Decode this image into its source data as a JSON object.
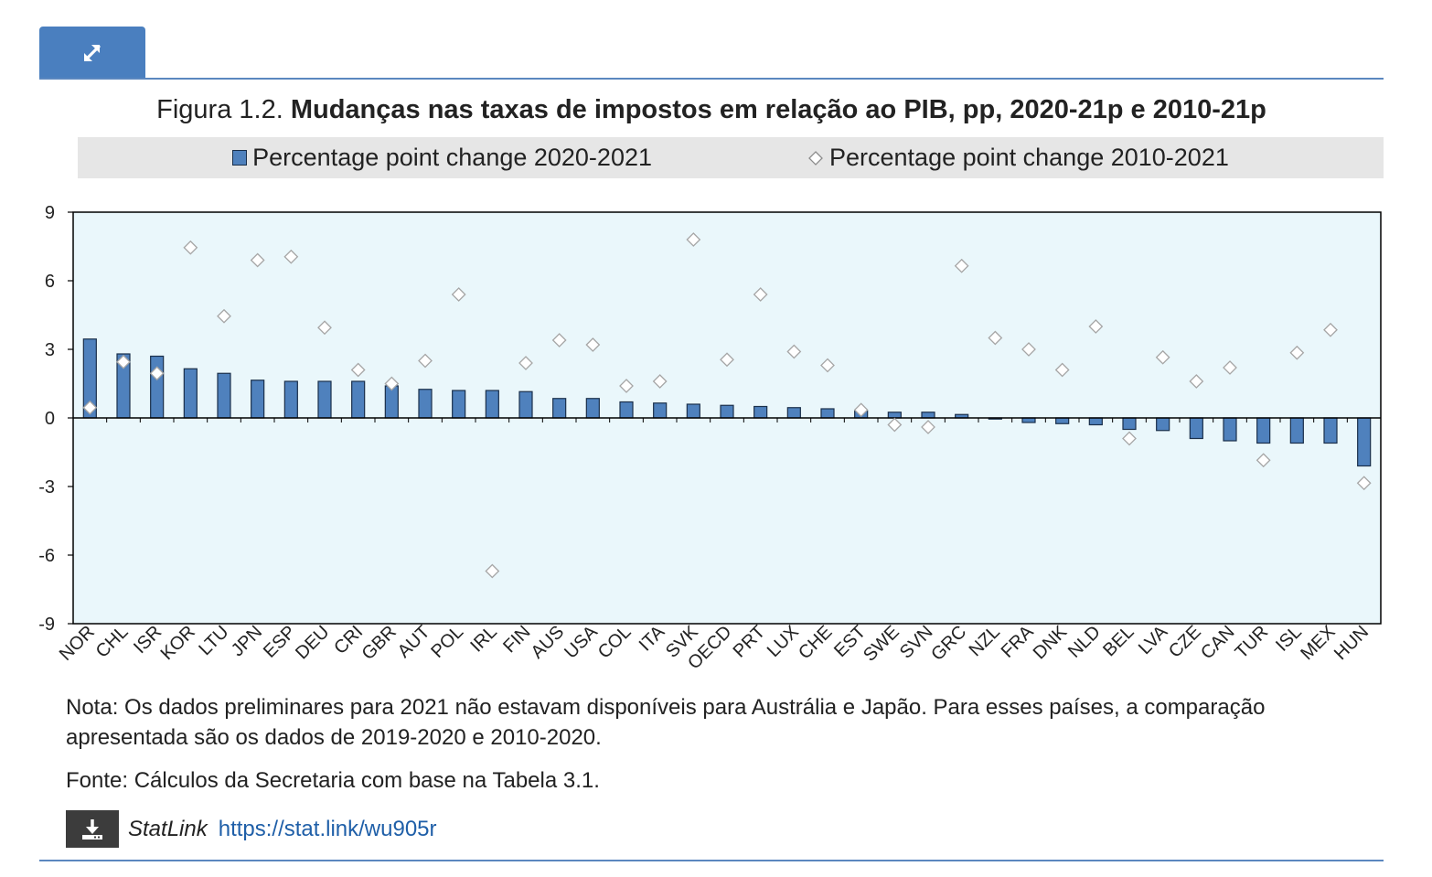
{
  "figure": {
    "label": "Figura 1.2.",
    "title": "Mudanças nas taxas de impostos em relação ao PIB, pp, 2020-21p e 2010-21p"
  },
  "legend": {
    "bar_label": "Percentage point change 2020-2021",
    "diamond_label": "Percentage point change 2010-2021"
  },
  "colors": {
    "bar_fill": "#4f81bd",
    "bar_stroke": "#1a2f4a",
    "plot_background": "#eaf7fb",
    "diamond_stroke": "#a6a6a6",
    "accent": "#4a7fbf"
  },
  "icons": {
    "expand": "expand-icon",
    "download": "download-icon"
  },
  "chart_data": {
    "type": "bar",
    "categories": [
      "NOR",
      "CHL",
      "ISR",
      "KOR",
      "LTU",
      "JPN",
      "ESP",
      "DEU",
      "CRI",
      "GBR",
      "AUT",
      "POL",
      "IRL",
      "FIN",
      "AUS",
      "USA",
      "COL",
      "ITA",
      "SVK",
      "OECD",
      "PRT",
      "LUX",
      "CHE",
      "EST",
      "SWE",
      "SVN",
      "GRC",
      "NZL",
      "FRA",
      "DNK",
      "NLD",
      "BEL",
      "LVA",
      "CZE",
      "CAN",
      "TUR",
      "ISL",
      "MEX",
      "HUN"
    ],
    "series": [
      {
        "name": "Percentage point change 2020-2021",
        "type": "bar",
        "values": [
          3.45,
          2.8,
          2.7,
          2.15,
          1.95,
          1.65,
          1.6,
          1.6,
          1.6,
          1.4,
          1.25,
          1.2,
          1.2,
          1.15,
          0.85,
          0.85,
          0.7,
          0.65,
          0.6,
          0.55,
          0.5,
          0.45,
          0.4,
          0.3,
          0.25,
          0.25,
          0.15,
          -0.05,
          -0.2,
          -0.25,
          -0.3,
          -0.5,
          -0.55,
          -0.9,
          -1.0,
          -1.1,
          -1.1,
          -1.1,
          -2.1
        ]
      },
      {
        "name": "Percentage point change 2010-2021",
        "type": "scatter",
        "marker": "diamond",
        "values": [
          0.45,
          2.45,
          1.95,
          7.45,
          4.45,
          6.9,
          7.05,
          3.95,
          2.1,
          1.5,
          2.5,
          5.4,
          -6.7,
          2.4,
          3.4,
          3.2,
          1.4,
          1.6,
          7.8,
          2.55,
          5.4,
          2.9,
          2.3,
          0.35,
          -0.3,
          -0.4,
          6.65,
          3.5,
          3.0,
          2.1,
          4.0,
          -0.9,
          2.65,
          1.6,
          2.2,
          -1.85,
          2.85,
          3.85,
          -2.85
        ]
      }
    ],
    "yticks": [
      "9",
      "6",
      "3",
      "0",
      "-3",
      "-6",
      "-9"
    ],
    "ylim": [
      -9,
      9
    ],
    "ytick_step": 3,
    "grid": false,
    "legend_position": "top-center"
  },
  "notes": {
    "note": "Nota: Os dados preliminares para 2021 não estavam disponíveis para Austrália e Japão. Para esses países, a comparação apresentada são os dados de 2019-2020 e 2010-2020.",
    "source": "Fonte: Cálculos da Secretaria com base na Tabela 3.1.",
    "statlink_label": "StatLink",
    "statlink_url": "https://stat.link/wu905r"
  }
}
